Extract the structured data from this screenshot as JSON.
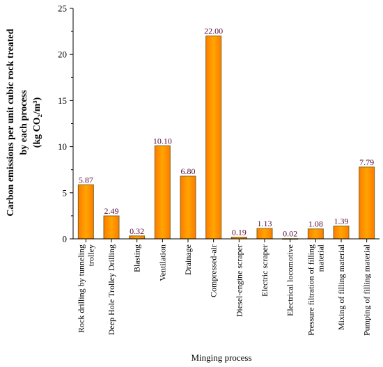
{
  "chart_data": {
    "type": "bar",
    "categories": [
      "Rock drilling by tunneling trolley",
      "Deep Hole Trolley Drilling",
      "Blasting",
      "Ventilation",
      "Drainage",
      "Compressed-air",
      "Diesel-engine scraper",
      "Electric scraper",
      "Electrical locomotive",
      "Pressure filtration of filling material",
      "Mixing of filling material",
      "Pumping of filling material"
    ],
    "category_lines": [
      [
        "Rock drilling by tunneling",
        "trolley"
      ],
      [
        "Deep Hole Trolley Drilling"
      ],
      [
        "Blasting"
      ],
      [
        "Ventilation"
      ],
      [
        "Drainage"
      ],
      [
        "Compressed-air"
      ],
      [
        "Diesel-engine scraper"
      ],
      [
        "Electric scraper"
      ],
      [
        "Electrical locomotive"
      ],
      [
        "Pressure filtration of filling",
        "material"
      ],
      [
        "Mixing of filling material"
      ],
      [
        "Pumping of filling material"
      ]
    ],
    "values": [
      5.87,
      2.49,
      0.32,
      10.1,
      6.8,
      22.0,
      0.19,
      1.13,
      0.02,
      1.08,
      1.39,
      7.79
    ],
    "value_labels": [
      "5.87",
      "2.49",
      "0.32",
      "10.10",
      "6.80",
      "22.00",
      "0.19",
      "1.13",
      "0.02",
      "1.08",
      "1.39",
      "7.79"
    ],
    "xlabel": "Minging process",
    "ylabel_lines": [
      "Carbon emissions per unit cubic rock treated",
      "by each process"
    ],
    "ylabel_unit": "(kg CO₂/m³)",
    "ylim": [
      0,
      25
    ],
    "yticks": [
      0,
      5,
      10,
      15,
      20,
      25
    ],
    "grid": false,
    "colors": {
      "bar_fill_top": "#ffa500",
      "bar_fill_bottom": "#ff7b00",
      "bar_stroke": "#7a6a1c",
      "value_label_color": "#5a0a3c"
    }
  }
}
